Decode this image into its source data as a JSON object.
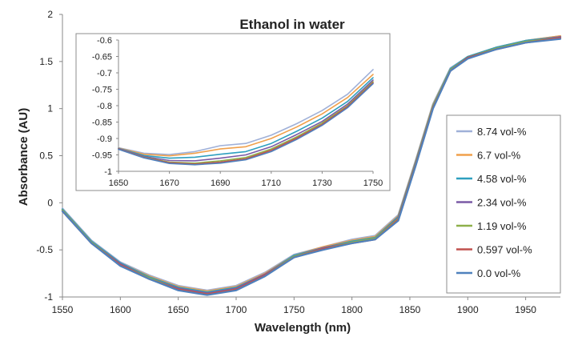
{
  "chart_data": [
    {
      "type": "line",
      "title": "Ethanol in water",
      "xlabel": "Wavelength (nm)",
      "ylabel": "Absorbance (AU)",
      "xlim": [
        1550,
        1980
      ],
      "ylim": [
        -1,
        2
      ],
      "x_ticks": [
        "1550",
        "1600",
        "1650",
        "1700",
        "1750",
        "1800",
        "1850",
        "1900",
        "1950"
      ],
      "y_ticks": [
        "-1",
        "-0.5",
        "0",
        "0.5",
        "1",
        "1.5",
        "2"
      ],
      "grid": false,
      "legend": "right",
      "x": [
        1550,
        1575,
        1600,
        1625,
        1650,
        1675,
        1700,
        1725,
        1750,
        1775,
        1800,
        1820,
        1840,
        1855,
        1870,
        1885,
        1900,
        1925,
        1950,
        1980
      ],
      "series": [
        {
          "name": "8.74 vol-%",
          "color": "#9fb0d8",
          "values": [
            -0.06,
            -0.4,
            -0.63,
            -0.77,
            -0.88,
            -0.93,
            -0.88,
            -0.74,
            -0.55,
            -0.47,
            -0.39,
            -0.35,
            -0.13,
            0.45,
            1.05,
            1.43,
            1.55,
            1.65,
            1.72,
            1.77
          ]
        },
        {
          "name": "6.7 vol-%",
          "color": "#f0a04b",
          "values": [
            -0.07,
            -0.41,
            -0.64,
            -0.78,
            -0.89,
            -0.94,
            -0.89,
            -0.75,
            -0.56,
            -0.47,
            -0.4,
            -0.36,
            -0.14,
            0.44,
            1.04,
            1.42,
            1.55,
            1.65,
            1.72,
            1.77
          ]
        },
        {
          "name": "4.58 vol-%",
          "color": "#2e9fbf",
          "values": [
            -0.07,
            -0.41,
            -0.64,
            -0.79,
            -0.9,
            -0.95,
            -0.9,
            -0.76,
            -0.56,
            -0.48,
            -0.41,
            -0.37,
            -0.15,
            0.43,
            1.03,
            1.42,
            1.55,
            1.65,
            1.72,
            1.76
          ]
        },
        {
          "name": "2.34 vol-%",
          "color": "#7a5aa6",
          "values": [
            -0.08,
            -0.42,
            -0.65,
            -0.8,
            -0.91,
            -0.96,
            -0.91,
            -0.76,
            -0.57,
            -0.48,
            -0.42,
            -0.38,
            -0.16,
            0.42,
            1.02,
            1.41,
            1.54,
            1.64,
            1.71,
            1.76
          ]
        },
        {
          "name": "1.19 vol-%",
          "color": "#8eb04a",
          "values": [
            -0.08,
            -0.42,
            -0.66,
            -0.8,
            -0.92,
            -0.97,
            -0.92,
            -0.77,
            -0.57,
            -0.49,
            -0.42,
            -0.38,
            -0.17,
            0.41,
            1.02,
            1.41,
            1.54,
            1.64,
            1.71,
            1.75
          ]
        },
        {
          "name": "0.597 vol-%",
          "color": "#c0504d",
          "values": [
            -0.09,
            -0.43,
            -0.66,
            -0.81,
            -0.92,
            -0.97,
            -0.92,
            -0.77,
            -0.58,
            -0.49,
            -0.43,
            -0.39,
            -0.18,
            0.4,
            1.01,
            1.4,
            1.54,
            1.63,
            1.7,
            1.75
          ]
        },
        {
          "name": "0.0 vol-%",
          "color": "#4f81bd",
          "values": [
            -0.09,
            -0.43,
            -0.67,
            -0.81,
            -0.93,
            -0.98,
            -0.93,
            -0.78,
            -0.58,
            -0.5,
            -0.43,
            -0.39,
            -0.19,
            0.39,
            1.0,
            1.4,
            1.53,
            1.63,
            1.7,
            1.74
          ]
        }
      ]
    },
    {
      "type": "line",
      "xlim": [
        1650,
        1750
      ],
      "ylim": [
        -1,
        -0.6
      ],
      "x_ticks": [
        "1650",
        "1670",
        "1690",
        "1710",
        "1730",
        "1750"
      ],
      "y_ticks": [
        "-1",
        "-0.95",
        "-0.9",
        "-0.85",
        "-0.8",
        "-0.75",
        "-0.7",
        "-0.65",
        "-0.6"
      ],
      "x": [
        1650,
        1660,
        1670,
        1680,
        1690,
        1700,
        1710,
        1720,
        1730,
        1740,
        1750
      ],
      "series": [
        {
          "color": "#9fb0d8",
          "values": [
            -0.928,
            -0.945,
            -0.949,
            -0.94,
            -0.922,
            -0.915,
            -0.89,
            -0.855,
            -0.815,
            -0.765,
            -0.69
          ]
        },
        {
          "color": "#f0a04b",
          "values": [
            -0.929,
            -0.948,
            -0.953,
            -0.945,
            -0.932,
            -0.925,
            -0.9,
            -0.865,
            -0.825,
            -0.775,
            -0.705
          ]
        },
        {
          "color": "#2e9fbf",
          "values": [
            -0.93,
            -0.952,
            -0.96,
            -0.957,
            -0.948,
            -0.94,
            -0.915,
            -0.878,
            -0.838,
            -0.787,
            -0.715
          ]
        },
        {
          "color": "#7a5aa6",
          "values": [
            -0.931,
            -0.955,
            -0.967,
            -0.968,
            -0.96,
            -0.95,
            -0.925,
            -0.888,
            -0.848,
            -0.795,
            -0.722
          ]
        },
        {
          "color": "#8eb04a",
          "values": [
            -0.932,
            -0.957,
            -0.972,
            -0.975,
            -0.968,
            -0.958,
            -0.932,
            -0.895,
            -0.853,
            -0.8,
            -0.727
          ]
        },
        {
          "color": "#c0504d",
          "values": [
            -0.932,
            -0.958,
            -0.974,
            -0.978,
            -0.972,
            -0.962,
            -0.936,
            -0.899,
            -0.857,
            -0.803,
            -0.73
          ]
        },
        {
          "color": "#4f81bd",
          "values": [
            -0.933,
            -0.959,
            -0.976,
            -0.98,
            -0.975,
            -0.965,
            -0.94,
            -0.903,
            -0.86,
            -0.806,
            -0.733
          ]
        }
      ]
    }
  ]
}
